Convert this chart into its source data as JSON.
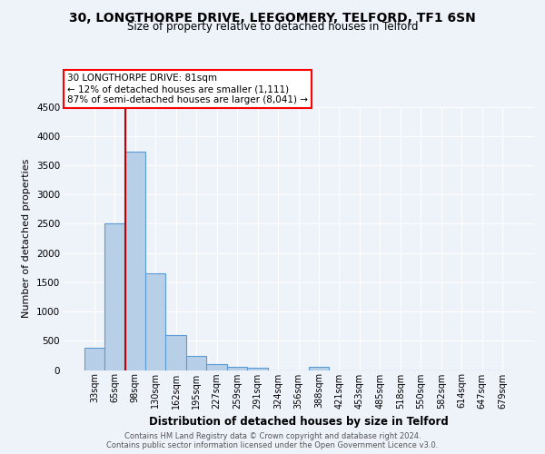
{
  "title_line1": "30, LONGTHORPE DRIVE, LEEGOMERY, TELFORD, TF1 6SN",
  "title_line2": "Size of property relative to detached houses in Telford",
  "xlabel": "Distribution of detached houses by size in Telford",
  "ylabel": "Number of detached properties",
  "categories": [
    "33sqm",
    "65sqm",
    "98sqm",
    "130sqm",
    "162sqm",
    "195sqm",
    "227sqm",
    "259sqm",
    "291sqm",
    "324sqm",
    "356sqm",
    "388sqm",
    "421sqm",
    "453sqm",
    "485sqm",
    "518sqm",
    "550sqm",
    "582sqm",
    "614sqm",
    "647sqm",
    "679sqm"
  ],
  "values": [
    375,
    2500,
    3730,
    1650,
    600,
    245,
    100,
    60,
    45,
    0,
    0,
    50,
    0,
    0,
    0,
    0,
    0,
    0,
    0,
    0,
    0
  ],
  "bar_color": "#b8cfe8",
  "bar_edgecolor": "#5b9bd5",
  "annotation_text": "30 LONGTHORPE DRIVE: 81sqm\n← 12% of detached houses are smaller (1,111)\n87% of semi-detached houses are larger (8,041) →",
  "box_color": "white",
  "box_edgecolor": "red",
  "marker_line_color": "#c00000",
  "ylim": [
    0,
    4500
  ],
  "yticks": [
    0,
    500,
    1000,
    1500,
    2000,
    2500,
    3000,
    3500,
    4000,
    4500
  ],
  "footer_line1": "Contains HM Land Registry data © Crown copyright and database right 2024.",
  "footer_line2": "Contains public sector information licensed under the Open Government Licence v3.0.",
  "background_color": "#eef2f9",
  "grid_color": "#ffffff",
  "title_fontsize": 10,
  "subtitle_fontsize": 8.5,
  "ylabel_fontsize": 8,
  "xlabel_fontsize": 8.5,
  "tick_fontsize": 7,
  "footer_fontsize": 6,
  "annotation_fontsize": 7.5
}
